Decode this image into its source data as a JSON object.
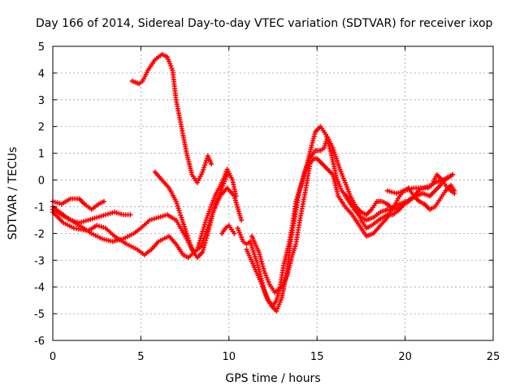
{
  "chart_data": {
    "type": "scatter",
    "title": "Day 166 of 2014, Sidereal Day-to-day VTEC variation (SDTVAR) for receiver ixop",
    "xlabel": "GPS time / hours",
    "ylabel": "SDTVAR / TECUs",
    "xlim": [
      0,
      25
    ],
    "ylim": [
      -6,
      5
    ],
    "xticks": [
      "0",
      "5",
      "10",
      "15",
      "20",
      "25"
    ],
    "yticks": [
      "5",
      "4",
      "3",
      "2",
      "1",
      "0",
      "-1",
      "-2",
      "-3",
      "-4",
      "-5",
      "-6"
    ],
    "grid": true,
    "marker": "plus",
    "color": "#ff0000",
    "series": [
      {
        "values": [
          [
            0,
            -0.8
          ],
          [
            0.5,
            -0.9
          ],
          [
            1.0,
            -0.7
          ],
          [
            1.5,
            -0.7
          ],
          [
            1.8,
            -0.9
          ],
          [
            2.2,
            -1.1
          ],
          [
            2.6,
            -0.9
          ],
          [
            2.9,
            -0.8
          ]
        ]
      },
      {
        "values": [
          [
            0,
            -1.1
          ],
          [
            0.5,
            -1.3
          ],
          [
            1.0,
            -1.5
          ],
          [
            1.5,
            -1.6
          ],
          [
            2.0,
            -1.5
          ],
          [
            2.5,
            -1.4
          ],
          [
            3.0,
            -1.3
          ],
          [
            3.5,
            -1.2
          ],
          [
            4.0,
            -1.3
          ],
          [
            4.4,
            -1.3
          ]
        ]
      },
      {
        "values": [
          [
            0,
            -1.2
          ],
          [
            0.6,
            -1.6
          ],
          [
            1.2,
            -1.8
          ],
          [
            2.0,
            -1.9
          ],
          [
            2.5,
            -1.7
          ],
          [
            3.0,
            -1.8
          ],
          [
            3.5,
            -2.1
          ],
          [
            4.2,
            -2.4
          ],
          [
            4.8,
            -2.6
          ],
          [
            5.2,
            -2.8
          ],
          [
            5.6,
            -2.6
          ],
          [
            6.0,
            -2.3
          ],
          [
            6.6,
            -2.1
          ],
          [
            7.0,
            -2.4
          ],
          [
            7.4,
            -2.8
          ],
          [
            7.7,
            -2.9
          ],
          [
            8.2,
            -2.6
          ],
          [
            8.7,
            -1.5
          ],
          [
            9.2,
            -0.6
          ],
          [
            9.6,
            -0.1
          ],
          [
            9.9,
            0.4
          ],
          [
            10.2,
            0.0
          ],
          [
            10.4,
            -0.6
          ]
        ]
      },
      {
        "values": [
          [
            0,
            -1.0
          ],
          [
            0.8,
            -1.4
          ],
          [
            1.5,
            -1.7
          ],
          [
            2.2,
            -2.0
          ],
          [
            2.8,
            -2.2
          ],
          [
            3.4,
            -2.3
          ],
          [
            4.0,
            -2.2
          ],
          [
            4.6,
            -2.0
          ],
          [
            5.0,
            -1.8
          ],
          [
            5.5,
            -1.5
          ],
          [
            6.0,
            -1.4
          ],
          [
            6.5,
            -1.3
          ],
          [
            7.0,
            -1.5
          ],
          [
            7.6,
            -2.2
          ],
          [
            8.0,
            -2.7
          ],
          [
            8.4,
            -2.5
          ],
          [
            8.9,
            -1.6
          ],
          [
            9.3,
            -0.8
          ],
          [
            9.6,
            -0.3
          ],
          [
            9.9,
            0.2
          ]
        ]
      },
      {
        "values": [
          [
            4.5,
            3.7
          ],
          [
            4.9,
            3.6
          ],
          [
            5.1,
            3.7
          ],
          [
            5.4,
            4.1
          ],
          [
            5.8,
            4.5
          ],
          [
            6.2,
            4.7
          ],
          [
            6.5,
            4.6
          ],
          [
            6.8,
            4.1
          ],
          [
            7.0,
            3.0
          ],
          [
            7.3,
            2.0
          ],
          [
            7.6,
            1.0
          ],
          [
            7.9,
            0.2
          ],
          [
            8.2,
            -0.1
          ],
          [
            8.5,
            0.3
          ],
          [
            8.8,
            0.9
          ],
          [
            9.0,
            0.6
          ]
        ]
      },
      {
        "values": [
          [
            5.8,
            0.3
          ],
          [
            6.2,
            0.0
          ],
          [
            6.6,
            -0.3
          ],
          [
            7.0,
            -0.8
          ],
          [
            7.3,
            -1.4
          ],
          [
            7.6,
            -2.0
          ],
          [
            7.9,
            -2.6
          ],
          [
            8.2,
            -2.9
          ],
          [
            8.5,
            -2.7
          ],
          [
            8.8,
            -2.0
          ],
          [
            9.1,
            -1.2
          ],
          [
            9.5,
            -0.6
          ],
          [
            9.9,
            -0.3
          ],
          [
            10.3,
            -0.6
          ],
          [
            10.7,
            -1.5
          ]
        ]
      },
      {
        "values": [
          [
            9.6,
            -2.0
          ],
          [
            9.8,
            -1.8
          ],
          [
            10.0,
            -1.7
          ],
          [
            10.3,
            -2.0
          ]
        ]
      },
      {
        "values": [
          [
            10.5,
            -1.8
          ],
          [
            10.8,
            -2.3
          ],
          [
            11.0,
            -2.4
          ],
          [
            11.2,
            -2.3
          ],
          [
            11.4,
            -2.7
          ],
          [
            11.6,
            -3.1
          ],
          [
            11.8,
            -3.6
          ],
          [
            12.0,
            -4.1
          ],
          [
            12.2,
            -4.5
          ],
          [
            12.5,
            -4.7
          ],
          [
            12.7,
            -4.5
          ],
          [
            12.9,
            -4.0
          ],
          [
            13.1,
            -3.2
          ],
          [
            13.4,
            -2.4
          ],
          [
            13.6,
            -1.7
          ],
          [
            13.8,
            -0.8
          ],
          [
            14.1,
            -0.2
          ],
          [
            14.4,
            0.5
          ],
          [
            14.7,
            1.3
          ],
          [
            14.9,
            1.8
          ],
          [
            15.2,
            2.0
          ],
          [
            15.5,
            1.7
          ],
          [
            15.8,
            1.0
          ],
          [
            16.1,
            0.1
          ],
          [
            16.4,
            -0.4
          ],
          [
            16.8,
            -0.7
          ],
          [
            17.1,
            -1.1
          ],
          [
            17.5,
            -1.4
          ],
          [
            17.8,
            -1.5
          ],
          [
            18.2,
            -1.4
          ],
          [
            18.6,
            -1.2
          ],
          [
            19.0,
            -1.1
          ],
          [
            19.4,
            -1.1
          ],
          [
            19.8,
            -1.0
          ],
          [
            20.2,
            -0.8
          ],
          [
            20.6,
            -0.6
          ],
          [
            21.0,
            -0.5
          ],
          [
            21.4,
            -0.6
          ],
          [
            21.7,
            -0.4
          ],
          [
            22.0,
            -0.2
          ],
          [
            22.4,
            0.1
          ],
          [
            22.7,
            0.2
          ]
        ]
      },
      {
        "values": [
          [
            11.0,
            -2.6
          ],
          [
            11.4,
            -3.2
          ],
          [
            11.8,
            -3.8
          ],
          [
            12.1,
            -4.3
          ],
          [
            12.4,
            -4.7
          ],
          [
            12.7,
            -4.9
          ],
          [
            13.0,
            -4.4
          ],
          [
            13.3,
            -3.4
          ],
          [
            13.5,
            -2.3
          ],
          [
            13.8,
            -1.2
          ],
          [
            14.0,
            -0.4
          ],
          [
            14.3,
            0.3
          ],
          [
            14.6,
            0.8
          ],
          [
            14.9,
            1.1
          ],
          [
            15.2,
            1.1
          ],
          [
            15.4,
            1.2
          ],
          [
            15.6,
            1.6
          ],
          [
            15.9,
            1.2
          ],
          [
            16.3,
            0.4
          ],
          [
            16.6,
            -0.1
          ],
          [
            16.9,
            -0.6
          ],
          [
            17.2,
            -1.0
          ],
          [
            17.5,
            -1.5
          ],
          [
            17.8,
            -1.8
          ],
          [
            18.1,
            -1.7
          ],
          [
            18.5,
            -1.5
          ],
          [
            19.0,
            -1.3
          ],
          [
            19.3,
            -1.3
          ],
          [
            19.7,
            -1.1
          ],
          [
            20.0,
            -0.8
          ]
        ]
      },
      {
        "values": [
          [
            11.3,
            -2.1
          ],
          [
            11.7,
            -2.7
          ],
          [
            12.0,
            -3.4
          ],
          [
            12.3,
            -3.9
          ],
          [
            12.6,
            -4.2
          ],
          [
            13.0,
            -4.0
          ],
          [
            13.3,
            -3.6
          ],
          [
            13.6,
            -2.8
          ],
          [
            13.8,
            -2.4
          ],
          [
            14.0,
            -1.6
          ],
          [
            14.2,
            -0.9
          ],
          [
            14.4,
            -0.2
          ],
          [
            14.6,
            0.6
          ],
          [
            14.8,
            0.8
          ],
          [
            15.0,
            0.8
          ],
          [
            15.3,
            0.6
          ],
          [
            15.6,
            0.4
          ],
          [
            15.9,
            0.2
          ],
          [
            16.2,
            -0.6
          ],
          [
            16.6,
            -1.0
          ],
          [
            17.0,
            -1.3
          ],
          [
            17.4,
            -1.7
          ],
          [
            17.8,
            -2.1
          ],
          [
            18.2,
            -2.0
          ],
          [
            18.6,
            -1.7
          ],
          [
            19.0,
            -1.4
          ],
          [
            19.3,
            -1.0
          ],
          [
            19.7,
            -0.9
          ],
          [
            20.1,
            -0.8
          ],
          [
            20.5,
            -0.6
          ],
          [
            20.9,
            -0.3
          ],
          [
            21.3,
            -0.3
          ],
          [
            21.7,
            -0.1
          ],
          [
            22.1,
            0.0
          ],
          [
            22.5,
            0.1
          ],
          [
            22.7,
            0.2
          ]
        ]
      },
      {
        "values": [
          [
            16.6,
            -0.6
          ],
          [
            16.9,
            -0.9
          ],
          [
            17.2,
            -1.0
          ],
          [
            17.5,
            -1.2
          ],
          [
            17.8,
            -1.3
          ],
          [
            18.1,
            -1.1
          ],
          [
            18.4,
            -0.8
          ],
          [
            18.7,
            -0.8
          ],
          [
            19.0,
            -0.9
          ],
          [
            19.3,
            -1.1
          ],
          [
            19.6,
            -0.7
          ],
          [
            19.9,
            -0.4
          ],
          [
            20.2,
            -0.3
          ],
          [
            20.5,
            -0.6
          ],
          [
            20.8,
            -0.8
          ],
          [
            21.1,
            -0.9
          ],
          [
            21.4,
            -1.1
          ],
          [
            21.7,
            -1.0
          ],
          [
            22.0,
            -0.7
          ],
          [
            22.3,
            -0.4
          ],
          [
            22.6,
            -0.2
          ],
          [
            22.8,
            -0.4
          ]
        ]
      },
      {
        "values": [
          [
            19.0,
            -0.4
          ],
          [
            19.5,
            -0.5
          ],
          [
            20.0,
            -0.4
          ],
          [
            20.5,
            -0.3
          ],
          [
            21.0,
            -0.3
          ],
          [
            21.5,
            -0.2
          ],
          [
            21.8,
            0.2
          ],
          [
            22.1,
            0.0
          ],
          [
            22.4,
            -0.3
          ],
          [
            22.8,
            -0.5
          ]
        ]
      }
    ]
  }
}
